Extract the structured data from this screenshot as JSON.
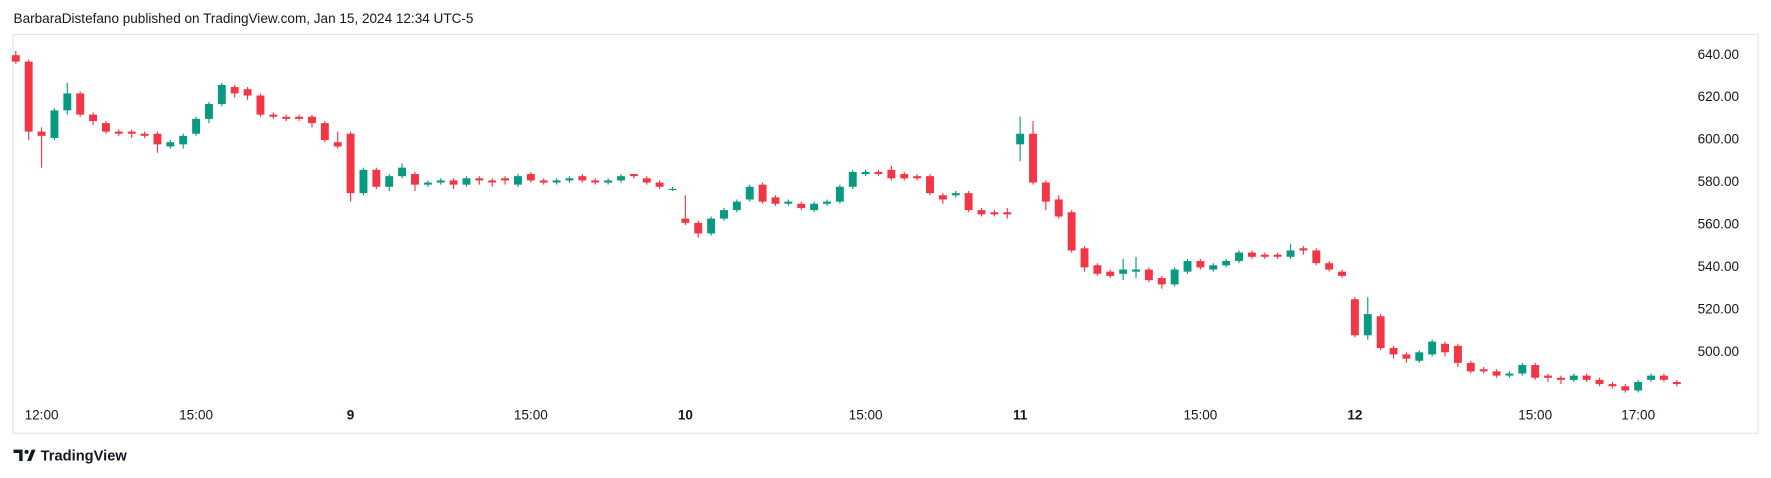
{
  "chart_data": {
    "type": "candlestick",
    "source": "BarbaraDistefano published on TradingView.com, Jan 15, 2024 12:34 UTC-5",
    "brand": "TradingView",
    "up_color": "#089981",
    "down_color": "#f23645",
    "categories": [
      null,
      null,
      "12:00",
      null,
      null,
      null,
      null,
      null,
      null,
      null,
      null,
      null,
      null,
      null,
      "15:00",
      null,
      null,
      null,
      null,
      null,
      null,
      null,
      null,
      null,
      null,
      null,
      "9",
      null,
      null,
      null,
      null,
      null,
      null,
      null,
      null,
      null,
      null,
      null,
      null,
      null,
      "15:00",
      null,
      null,
      null,
      null,
      null,
      null,
      null,
      null,
      null,
      null,
      null,
      "10",
      null,
      null,
      null,
      null,
      null,
      null,
      null,
      null,
      null,
      null,
      null,
      null,
      null,
      "15:00",
      null,
      null,
      null,
      null,
      null,
      null,
      null,
      null,
      null,
      null,
      null,
      "11",
      null,
      null,
      null,
      null,
      null,
      null,
      null,
      null,
      null,
      null,
      null,
      null,
      null,
      "15:00",
      null,
      null,
      null,
      null,
      null,
      null,
      null,
      null,
      null,
      null,
      null,
      "12",
      null,
      null,
      null,
      null,
      null,
      null,
      null,
      null,
      null,
      null,
      null,
      null,
      null,
      "15:00",
      null,
      null,
      null,
      null,
      null,
      null,
      null,
      "17:00",
      null,
      null,
      null
    ],
    "open": [
      640,
      637,
      604,
      601,
      614,
      622,
      612,
      608,
      604,
      604,
      603,
      603,
      597,
      598,
      603,
      610,
      617,
      625,
      624,
      621,
      612,
      611,
      611,
      611,
      608,
      599,
      603,
      575,
      586,
      578,
      583,
      584,
      579,
      580,
      581,
      579,
      582,
      581,
      582,
      579,
      584,
      581,
      580,
      581,
      583,
      581,
      580,
      581,
      584,
      582,
      580,
      577,
      563,
      561,
      556,
      563,
      567,
      572,
      579,
      573,
      570,
      570,
      567,
      570,
      571,
      578,
      584,
      585,
      586,
      584,
      583,
      583,
      574,
      574,
      575,
      567,
      566,
      566,
      598,
      603,
      580,
      572,
      566,
      549,
      541,
      538,
      537,
      538,
      539,
      535,
      532,
      538,
      543,
      539,
      541,
      543,
      547,
      546,
      546,
      545,
      549,
      548,
      542,
      538,
      525,
      508,
      517,
      502,
      499,
      496,
      499,
      504,
      503,
      495,
      492,
      491,
      489,
      490,
      494,
      489,
      488,
      487,
      489,
      487,
      485,
      484,
      482,
      487,
      489,
      486
    ],
    "high": [
      642,
      638,
      606,
      615,
      627,
      623,
      613,
      609,
      605,
      605,
      604,
      604,
      600,
      603,
      611,
      618,
      627,
      626,
      625,
      622,
      613,
      612,
      612,
      612,
      609,
      604,
      604,
      587,
      587,
      584,
      589,
      585,
      581,
      582,
      582,
      583,
      583,
      582,
      583,
      584,
      585,
      582,
      582,
      583,
      584,
      582,
      582,
      584,
      584,
      583,
      581,
      578,
      574,
      562,
      564,
      568,
      572,
      579,
      580,
      574,
      572,
      571,
      571,
      572,
      579,
      586,
      586,
      586,
      588,
      585,
      584,
      584,
      575,
      576,
      576,
      568,
      567,
      568,
      611,
      609,
      581,
      574,
      567,
      550,
      542,
      539,
      544,
      545,
      540,
      536,
      540,
      544,
      544,
      542,
      544,
      548,
      548,
      547,
      547,
      551,
      550,
      549,
      543,
      539,
      526,
      526,
      518,
      503,
      500,
      501,
      506,
      505,
      504,
      496,
      493,
      492,
      491,
      495,
      495,
      490,
      489,
      490,
      490,
      488,
      486,
      485,
      487,
      490,
      490,
      487
    ],
    "low": [
      636,
      600,
      587,
      600,
      612,
      611,
      607,
      603,
      602,
      601,
      601,
      594,
      596,
      596,
      602,
      608,
      616,
      620,
      619,
      611,
      610,
      609,
      609,
      606,
      599,
      596,
      571,
      574,
      577,
      576,
      582,
      576,
      578,
      579,
      577,
      578,
      579,
      578,
      579,
      578,
      580,
      579,
      579,
      580,
      580,
      579,
      579,
      580,
      582,
      579,
      577,
      576,
      560,
      554,
      555,
      562,
      566,
      571,
      570,
      569,
      569,
      567,
      566,
      569,
      570,
      577,
      583,
      583,
      581,
      581,
      581,
      574,
      570,
      573,
      566,
      564,
      564,
      563,
      590,
      579,
      567,
      563,
      547,
      538,
      536,
      535,
      534,
      535,
      533,
      530,
      531,
      537,
      539,
      538,
      540,
      542,
      544,
      544,
      544,
      544,
      546,
      541,
      538,
      535,
      507,
      506,
      501,
      497,
      495,
      495,
      498,
      498,
      493,
      490,
      490,
      488,
      488,
      489,
      487,
      486,
      485,
      486,
      486,
      484,
      483,
      481,
      481,
      486,
      486,
      484
    ],
    "close": [
      637,
      604,
      602,
      614,
      622,
      612,
      609,
      604,
      603,
      603,
      602,
      598,
      599,
      602,
      610,
      617,
      626,
      622,
      621,
      612,
      611,
      610,
      610,
      608,
      600,
      597,
      575,
      586,
      578,
      583,
      587,
      579,
      580,
      581,
      579,
      582,
      581,
      580,
      581,
      583,
      581,
      580,
      581,
      582,
      581,
      580,
      581,
      583,
      583,
      580,
      578,
      577,
      561,
      556,
      563,
      567,
      571,
      578,
      571,
      570,
      571,
      568,
      570,
      571,
      578,
      585,
      585,
      584,
      582,
      582,
      582,
      575,
      572,
      575,
      567,
      565,
      565,
      565,
      603,
      580,
      571,
      564,
      548,
      540,
      537,
      536,
      539,
      539,
      534,
      532,
      539,
      543,
      540,
      541,
      543,
      547,
      545,
      545,
      545,
      548,
      548,
      542,
      539,
      536,
      508,
      518,
      502,
      499,
      497,
      500,
      505,
      500,
      495,
      491,
      491,
      489,
      490,
      494,
      488,
      488,
      487,
      489,
      487,
      485,
      484,
      482,
      486,
      489,
      487,
      485
    ],
    "ylim": [
      477,
      650
    ],
    "yticks": [
      {
        "value": 500,
        "label": "500.00"
      },
      {
        "value": 520,
        "label": "520.00"
      },
      {
        "value": 540,
        "label": "540.00"
      },
      {
        "value": 560,
        "label": "560.00"
      },
      {
        "value": 580,
        "label": "580.00"
      },
      {
        "value": 600,
        "label": "600.00"
      },
      {
        "value": 620,
        "label": "620.00"
      },
      {
        "value": 640,
        "label": "640.00"
      }
    ],
    "grid": false
  }
}
